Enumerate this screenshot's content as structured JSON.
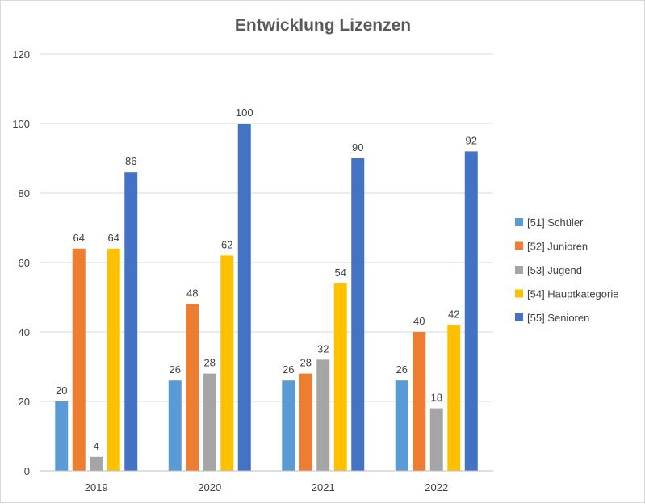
{
  "chart_data": {
    "type": "bar",
    "title": "Entwicklung Lizenzen",
    "xlabel": "",
    "ylabel": "",
    "categories": [
      "2019",
      "2020",
      "2021",
      "2022"
    ],
    "ylim": [
      0,
      120
    ],
    "yticks": [
      0,
      20,
      40,
      60,
      80,
      100,
      120
    ],
    "grid": true,
    "legend_position": "right",
    "series": [
      {
        "name": "[51] Schüler",
        "color": "#5b9bd5",
        "values": [
          20,
          26,
          26,
          26
        ]
      },
      {
        "name": "[52] Junioren",
        "color": "#ed7d31",
        "values": [
          64,
          48,
          28,
          40
        ]
      },
      {
        "name": "[53] Jugend",
        "color": "#a5a5a5",
        "values": [
          4,
          28,
          32,
          18
        ]
      },
      {
        "name": "[54] Hauptkategorie",
        "color": "#ffc000",
        "values": [
          64,
          62,
          54,
          42
        ]
      },
      {
        "name": "[55] Senioren",
        "color": "#4472c4",
        "values": [
          86,
          100,
          90,
          92
        ]
      }
    ]
  }
}
